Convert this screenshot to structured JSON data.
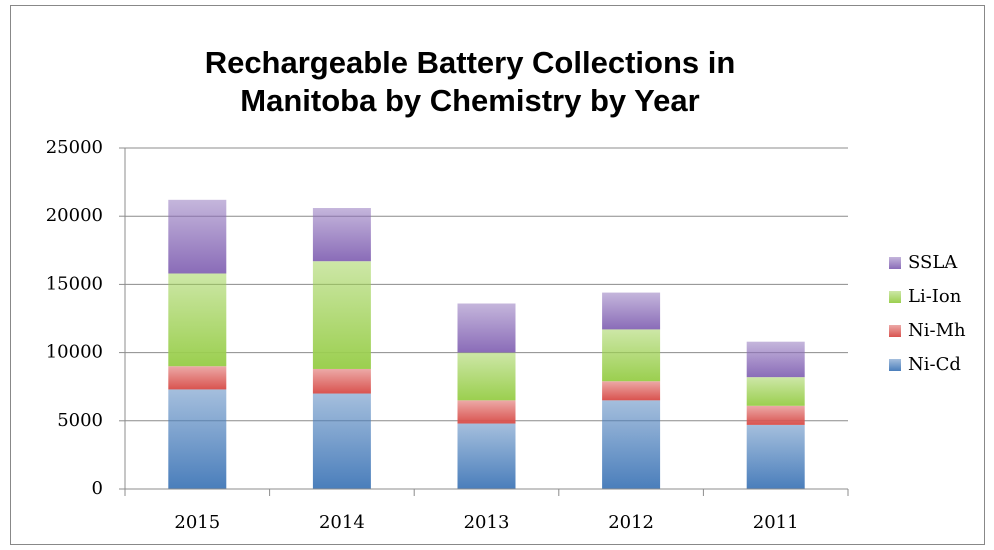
{
  "chart_data": {
    "type": "stacked_bar",
    "title": "Rechargeable Battery Collections in Manitoba by Chemistry by Year",
    "categories": [
      "2015",
      "2014",
      "2013",
      "2012",
      "2011"
    ],
    "series": [
      {
        "name": "Ni-Cd",
        "color": "#4a7ebb",
        "values": [
          7300,
          7000,
          4800,
          6500,
          4700
        ]
      },
      {
        "name": "Ni-Mh",
        "color": "#d9534f",
        "values": [
          1700,
          1800,
          1700,
          1400,
          1400
        ]
      },
      {
        "name": "Li-Ion",
        "color": "#9bcf4f",
        "values": [
          6800,
          7900,
          3500,
          3800,
          2100
        ]
      },
      {
        "name": "SSLA",
        "color": "#8a6cb8",
        "values": [
          5400,
          3900,
          3600,
          2700,
          2600
        ]
      }
    ],
    "ylim": [
      0,
      25000
    ],
    "yticks": [
      0,
      5000,
      10000,
      15000,
      20000,
      25000
    ],
    "grid": true,
    "legend": "right"
  }
}
